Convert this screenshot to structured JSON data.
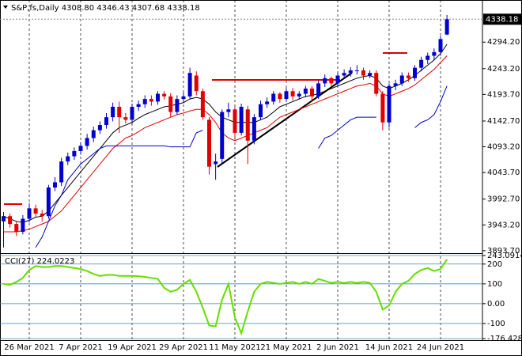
{
  "chart_data": [
    {
      "type": "candlestick",
      "title": "S&P,fs,Daily  4308.80 4346.43 4307.68 4338.18",
      "categories": [
        null,
        null,
        null,
        null,
        "26 Mar 2021",
        null,
        null,
        null,
        null,
        null,
        null,
        null,
        "7 Apr 2021",
        null,
        null,
        null,
        null,
        null,
        null,
        null,
        "19 Apr 2021",
        null,
        null,
        null,
        null,
        null,
        null,
        null,
        "29 Apr 2021",
        null,
        null,
        null,
        null,
        null,
        null,
        null,
        "11 May 2021",
        null,
        null,
        null,
        null,
        null,
        null,
        null,
        "21 May 2021",
        null,
        null,
        null,
        null,
        null,
        null,
        null,
        "2 Jun 2021",
        null,
        null,
        null,
        null,
        null,
        null,
        null,
        "14 Jun 2021",
        null,
        null,
        null,
        null,
        null,
        null,
        null,
        "24 Jun 2021",
        null
      ],
      "open": [
        3950,
        3960,
        3945,
        3930,
        3955,
        3975,
        3965,
        3960,
        4015,
        4025,
        4065,
        4075,
        4085,
        4095,
        4110,
        4125,
        4135,
        4150,
        4170,
        4150,
        4145,
        4170,
        4175,
        4185,
        4180,
        4195,
        4190,
        4160,
        4185,
        4190,
        4230,
        4200,
        4145,
        4060,
        4070,
        4160,
        4165,
        4120,
        4165,
        4105,
        4150,
        4175,
        4180,
        4195,
        4185,
        4200,
        4190,
        4195,
        4205,
        4190,
        4215,
        4225,
        4215,
        4230,
        4235,
        4240,
        4240,
        4230,
        4235,
        4195,
        4140,
        4210,
        4215,
        4230,
        4225,
        4245,
        4260,
        4268,
        4275,
        4308.8
      ],
      "high": [
        3968,
        3965,
        3950,
        3962,
        3985,
        3982,
        3972,
        4020,
        4035,
        4072,
        4082,
        4092,
        4102,
        4118,
        4132,
        4142,
        4158,
        4178,
        4180,
        4158,
        4176,
        4182,
        4192,
        4192,
        4200,
        4200,
        4196,
        4192,
        4198,
        4245,
        4238,
        4205,
        4150,
        4080,
        4165,
        4178,
        4170,
        4176,
        4172,
        4156,
        4182,
        4188,
        4200,
        4198,
        4206,
        4206,
        4200,
        4210,
        4210,
        4220,
        4232,
        4228,
        4236,
        4242,
        4246,
        4250,
        4245,
        4240,
        4240,
        4200,
        4215,
        4222,
        4236,
        4236,
        4250,
        4266,
        4274,
        4282,
        4306,
        4346.43
      ],
      "low": [
        3900,
        3938,
        3922,
        3925,
        3948,
        3958,
        3950,
        3955,
        4008,
        4018,
        4058,
        4068,
        4078,
        4088,
        4102,
        4118,
        4128,
        4142,
        4120,
        4138,
        4138,
        4162,
        4168,
        4172,
        4174,
        4184,
        4150,
        4155,
        4178,
        4185,
        4192,
        4145,
        4040,
        4030,
        4062,
        4150,
        4110,
        4115,
        4060,
        4098,
        4144,
        4168,
        4174,
        4178,
        4180,
        4182,
        4184,
        4188,
        4182,
        4185,
        4208,
        4208,
        4210,
        4225,
        4228,
        4232,
        4222,
        4225,
        4190,
        4125,
        4130,
        4202,
        4210,
        4218,
        4220,
        4238,
        4252,
        4260,
        4268,
        4307.68
      ],
      "close": [
        3960,
        3945,
        3930,
        3955,
        3975,
        3965,
        3960,
        4015,
        4025,
        4065,
        4075,
        4085,
        4095,
        4110,
        4125,
        4135,
        4150,
        4170,
        4150,
        4145,
        4170,
        4175,
        4185,
        4180,
        4195,
        4190,
        4160,
        4185,
        4190,
        4235,
        4200,
        4150,
        4055,
        4065,
        4160,
        4165,
        4120,
        4170,
        4105,
        4150,
        4175,
        4180,
        4195,
        4185,
        4200,
        4190,
        4195,
        4205,
        4190,
        4215,
        4225,
        4215,
        4230,
        4235,
        4240,
        4240,
        4230,
        4235,
        4195,
        4140,
        4210,
        4215,
        4230,
        4225,
        4245,
        4260,
        4268,
        4275,
        4300,
        4338.18
      ],
      "up_color": "#0000cd",
      "down_color": "#e00000",
      "series": [
        {
          "color": "#000000",
          "values": [
            3960,
            3955,
            3950,
            3948,
            3952,
            3958,
            3960,
            3970,
            3985,
            4000,
            4015,
            4030,
            4045,
            4060,
            4075,
            4090,
            4105,
            4120,
            4130,
            4135,
            4140,
            4148,
            4155,
            4160,
            4165,
            4170,
            4172,
            4175,
            4178,
            4185,
            4188,
            4185,
            4175,
            4160,
            4150,
            4145,
            4140,
            4140,
            4140,
            4140,
            4145,
            4150,
            4160,
            4170,
            4175,
            4180,
            4185,
            4190,
            4192,
            4195,
            4200,
            4205,
            4210,
            4215,
            4220,
            4225,
            4228,
            4230,
            4225,
            4210,
            4205,
            4210,
            4215,
            4222,
            4230,
            4240,
            4250,
            4260,
            4272,
            4290
          ]
        },
        {
          "color": "#e00000",
          "values": [
            3930,
            3930,
            3930,
            3932,
            3935,
            3940,
            3945,
            3950,
            3960,
            3970,
            3985,
            4000,
            4015,
            4030,
            4045,
            4060,
            4075,
            4090,
            4100,
            4110,
            4115,
            4122,
            4130,
            4135,
            4140,
            4145,
            4150,
            4155,
            4158,
            4162,
            4165,
            4165,
            4155,
            4140,
            4120,
            4110,
            4105,
            4110,
            4115,
            4120,
            4125,
            4130,
            4140,
            4150,
            4155,
            4160,
            4165,
            4170,
            4175,
            4180,
            4185,
            4190,
            4195,
            4200,
            4205,
            4210,
            4212,
            4215,
            4210,
            4195,
            4190,
            4195,
            4200,
            4205,
            4212,
            4222,
            4232,
            4242,
            4255,
            4268
          ]
        },
        {
          "color": "#0000cd",
          "values": [
            null,
            null,
            null,
            null,
            null,
            3900,
            3920,
            3950,
            3980,
            4000,
            4030,
            4045,
            4060,
            4070,
            4080,
            4090,
            4095,
            4095,
            4095,
            4095,
            4095,
            4095,
            4095,
            4095,
            4095,
            4095,
            4093,
            4093,
            4093,
            4093,
            4120,
            4125,
            null,
            null,
            null,
            null,
            null,
            null,
            null,
            null,
            null,
            null,
            null,
            null,
            null,
            null,
            null,
            null,
            null,
            4090,
            4110,
            4115,
            4125,
            4135,
            4145,
            4150,
            4150,
            4150,
            4150,
            null,
            null,
            null,
            null,
            null,
            4130,
            4140,
            4145,
            4155,
            4180,
            4210
          ]
        }
      ],
      "last_price": 4338.18,
      "ylim": [
        3892,
        4369
      ],
      "yticks": [
        {
          "value": 4294.2,
          "label": "4294.20"
        },
        {
          "value": 4243.2,
          "label": "4243.20"
        },
        {
          "value": 4193.7,
          "label": "4193.70"
        },
        {
          "value": 4142.7,
          "label": "4142.70"
        },
        {
          "value": 4093.2,
          "label": "4093.20"
        },
        {
          "value": 4043.7,
          "label": "4043.70"
        },
        {
          "value": 3992.7,
          "label": "3992.70"
        },
        {
          "value": 3943.2,
          "label": "3943.20"
        },
        {
          "value": 3893.7,
          "label": "3893.70"
        }
      ]
    },
    {
      "type": "line",
      "title": "CCI(27) 224.0223",
      "color": "#66dd00",
      "values": [
        100,
        95,
        110,
        130,
        170,
        190,
        185,
        185,
        190,
        190,
        185,
        180,
        175,
        165,
        150,
        140,
        145,
        145,
        140,
        140,
        140,
        138,
        135,
        130,
        125,
        80,
        60,
        70,
        100,
        120,
        60,
        -20,
        -110,
        -115,
        20,
        100,
        -70,
        -150,
        -40,
        60,
        100,
        110,
        105,
        100,
        105,
        110,
        100,
        110,
        100,
        125,
        115,
        105,
        110,
        105,
        110,
        105,
        110,
        105,
        60,
        -30,
        -10,
        60,
        100,
        115,
        150,
        170,
        180,
        165,
        175,
        224.0223
      ],
      "ylim": [
        -176.4288,
        243.0914
      ],
      "yticks": [
        243.0914,
        200,
        100,
        {
          "value": 0,
          "label": "0.00"
        },
        -100,
        -176.4288
      ]
    }
  ]
}
